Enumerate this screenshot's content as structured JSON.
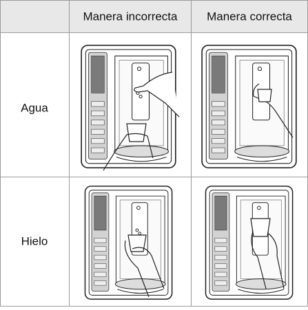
{
  "table": {
    "columns": [
      "Manera incorrecta",
      "Manera correcta"
    ],
    "rows": [
      {
        "label": "Agua"
      },
      {
        "label": "Hielo"
      }
    ]
  }
}
